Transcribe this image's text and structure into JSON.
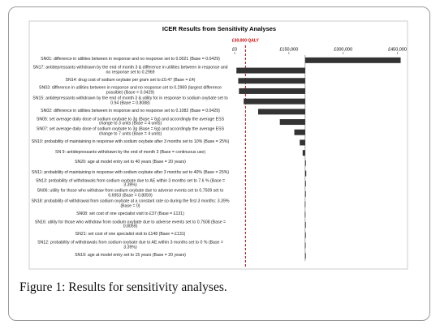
{
  "chart_data": {
    "type": "bar",
    "orientation": "horizontal",
    "title": "ICER Results from Sensitivity Analyses",
    "caption": "Figure 1: Results for sensitivity analyses.",
    "threshold": {
      "value": 30000,
      "label": "£30,000 QALY",
      "color": "#cc0000"
    },
    "base_value": 195000,
    "color": "#333333",
    "xlim": [
      0,
      460000
    ],
    "xticks": [
      {
        "value": 0,
        "label": "£0"
      },
      {
        "value": 150000,
        "label": "£150,000"
      },
      {
        "value": 300000,
        "label": "£300,000"
      },
      {
        "value": 450000,
        "label": "£450,000"
      }
    ],
    "categories": [
      "SN01: difference in utilities between in response and no response set to 0.0021 (Base = 0.0429)",
      "SN17: antidepressants withdrawn by the end of month 3 & difference in utilities between in response and no response set to 0.2969",
      "SN14: drug cost of sodium oxybate per gram set to £0.47 (Base = £4)",
      "SN03: difference in utilities between in response and no response set to 0.2969 (largest difference possible) (Base = 0.0429)",
      "SN15: antidepressants withdrawn by the end of month 3 & utility for in response to sodium oxybate set to 0.94 (Base = 0.8088)",
      "SN02: difference in utilities between in response and no response set to 0.1082 (Base = 0.0429)",
      "SN05: set average daily dose of sodium oxybate to 3g (Base = 6g) and accordingly the average ESS change to 3 units (Base = 4 units)",
      "SN07: set average daily dose of sodium oxybate to 3g (Base = 6g) and accordingly the average ESS change to 7 units (Base = 4 units)",
      "SN10: probability of maintaining in response with sodium oxybate after 3 months set to 10% (Base = 25%)",
      "SN 9: antidepressants withdrawn by the end of month 3 (Base = continuous use)",
      "SN20: age at model entry set to 40 years (Base = 20 years)",
      "SN11: probability of maintaining in response with sodium oxybate after 3 months set to 40% (Base = 25%)",
      "SN13: probability of withdrawals from sodium oxybate due to AE within 3 months set to 7.6 % (Base = 3.39%)",
      "SN06: utility for those who withdraw from sodium oxybate due to adverse events set to 0.7509 set to 0.6953 (Base = 0.8059)",
      "SN18: probability of withdrawal from sodium oxybate at a constant rate so during the first 3 months: 3.39% (Base = 0)",
      "SN08: set cost of one specialist visit to £37 (Base = £131)",
      "SN16: utility for those who withdraw from sodium oxybate due to adverse events set to 0.7508 (Base = 0.8059)",
      "SN21: set cost of one specialist visit to £148 (Base = £131)",
      "SN12: probability of withdrawals from sodium oxybate due to AE within 3 months set to 0 % (Base = 3.39%)",
      "SN19: age at model entry set to 15 years (Base = 20 years)"
    ],
    "values": [
      459000,
      5000,
      10000,
      12000,
      25000,
      65000,
      125000,
      165000,
      180000,
      188000,
      197000,
      198000,
      197000,
      196000,
      194000,
      194000,
      196000,
      195500,
      194500,
      195000
    ]
  }
}
